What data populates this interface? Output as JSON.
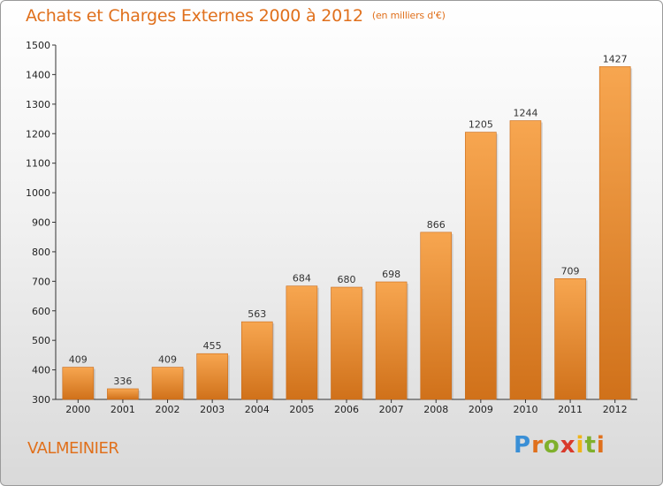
{
  "header": {
    "title": "Achats et Charges Externes 2000 à 2012",
    "unit": "(en milliers d'€)"
  },
  "footer": {
    "commune": "VALMEINIER",
    "brand_letters": [
      "P",
      "r",
      "o",
      "x",
      "i",
      "t",
      "i"
    ]
  },
  "colors": {
    "accent": "#e0701c",
    "bar_top": "#f7a650",
    "bar_bottom": "#d0711a"
  },
  "chart_data": {
    "type": "bar",
    "title": "Achats et Charges Externes 2000 à 2012",
    "subtitle": "(en milliers d'€)",
    "xlabel": "",
    "ylabel": "",
    "categories": [
      "2000",
      "2001",
      "2002",
      "2003",
      "2004",
      "2005",
      "2006",
      "2007",
      "2008",
      "2009",
      "2010",
      "2011",
      "2012"
    ],
    "values": [
      409,
      336,
      409,
      455,
      563,
      684,
      680,
      698,
      866,
      1205,
      1244,
      709,
      1427
    ],
    "ylim": [
      300,
      1500
    ],
    "yticks": [
      300,
      400,
      500,
      600,
      700,
      800,
      900,
      1000,
      1100,
      1200,
      1300,
      1400,
      1500
    ],
    "grid": false,
    "legend": "none"
  }
}
